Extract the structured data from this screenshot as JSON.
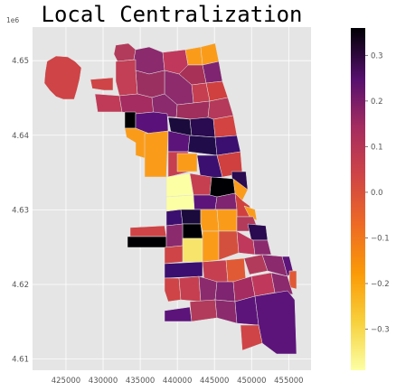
{
  "chart_data": {
    "type": "heatmap",
    "title": "Local Centralization",
    "x_offset_label": "",
    "y_offset_label": "1e6",
    "xlim": [
      420500,
      458000
    ],
    "ylim": [
      4.6085,
      4.6545
    ],
    "x_ticks": [
      425000,
      430000,
      435000,
      440000,
      445000,
      450000,
      455000
    ],
    "x_tick_labels": [
      "425000",
      "430000",
      "435000",
      "440000",
      "445000",
      "450000",
      "455000"
    ],
    "y_ticks": [
      4.61,
      4.62,
      4.63,
      4.64,
      4.65
    ],
    "y_tick_labels": [
      "4.61",
      "4.62",
      "4.63",
      "4.64",
      "4.65"
    ],
    "grid": true,
    "colormap": "inferno",
    "colorbar": {
      "vmin": -0.39,
      "vmax": 0.36,
      "ticks": [
        0.3,
        0.2,
        0.1,
        0.0,
        -0.1,
        -0.2,
        -0.3
      ],
      "tick_labels": [
        "0.3",
        "0.2",
        "0.1",
        "0.0",
        "−0.1",
        "−0.2",
        "−0.3"
      ]
    },
    "background_color": "#e5e5e5"
  }
}
